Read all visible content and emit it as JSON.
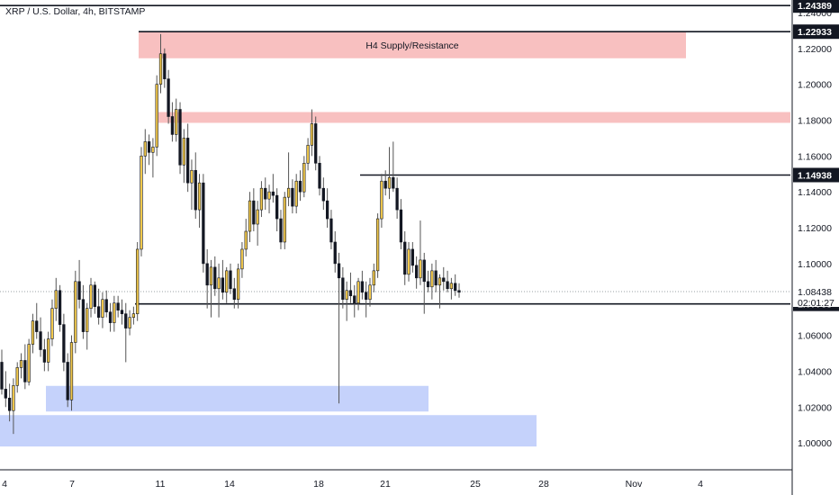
{
  "header": {
    "symbol": "XRP / U.S. Dollar, 4h, BITSTAMP"
  },
  "chart_data": {
    "type": "candlestick",
    "title": "XRP / U.S. Dollar, 4h, BITSTAMP",
    "ylim": [
      0.985,
      1.247
    ],
    "y_ticks": [
      "1.24000",
      "1.22000",
      "1.20000",
      "1.18000",
      "1.16000",
      "1.14000",
      "1.12000",
      "1.10000",
      "1.06000",
      "1.04000",
      "1.02000",
      "1.00000"
    ],
    "x_ticks": [
      "4",
      "7",
      "11",
      "14",
      "18",
      "21",
      "25",
      "28",
      "Nov",
      "4"
    ],
    "current_price": "1.08438",
    "countdown": "02:01:27",
    "colors": {
      "up": "#f2c94c",
      "down": "#131722",
      "wick": "#555555",
      "grid": "#ffffff",
      "supply": "#f8c0c0",
      "demand": "#c5d2fb"
    },
    "levels": [
      {
        "price": "1.24389"
      },
      {
        "price": "1.22933"
      },
      {
        "price": "1.14938"
      },
      {
        "price": "1.07753"
      }
    ],
    "zones": [
      {
        "type": "supply",
        "label": "H4 Supply/Resistance",
        "top": 1.2293,
        "bottom": 1.2145
      },
      {
        "type": "supply",
        "label": "",
        "top": 1.1845,
        "bottom": 1.1785
      },
      {
        "type": "demand",
        "label": "",
        "top": 1.0318,
        "bottom": 1.0175
      },
      {
        "type": "demand",
        "label": "",
        "top": 1.0155,
        "bottom": 0.998
      }
    ],
    "candles": [
      [
        1.045,
        1.052,
        1.027,
        1.03
      ],
      [
        1.03,
        1.04,
        1.02,
        1.025
      ],
      [
        1.025,
        1.033,
        1.012,
        1.018
      ],
      [
        1.018,
        1.036,
        1.005,
        1.032
      ],
      [
        1.032,
        1.045,
        1.028,
        1.042
      ],
      [
        1.042,
        1.05,
        1.036,
        1.046
      ],
      [
        1.046,
        1.055,
        1.03,
        1.034
      ],
      [
        1.034,
        1.058,
        1.032,
        1.055
      ],
      [
        1.055,
        1.072,
        1.05,
        1.068
      ],
      [
        1.068,
        1.078,
        1.058,
        1.062
      ],
      [
        1.062,
        1.07,
        1.048,
        1.052
      ],
      [
        1.052,
        1.058,
        1.04,
        1.045
      ],
      [
        1.045,
        1.062,
        1.04,
        1.058
      ],
      [
        1.058,
        1.08,
        1.054,
        1.075
      ],
      [
        1.075,
        1.092,
        1.068,
        1.085
      ],
      [
        1.085,
        1.088,
        1.062,
        1.066
      ],
      [
        1.066,
        1.072,
        1.04,
        1.045
      ],
      [
        1.045,
        1.05,
        1.02,
        1.024
      ],
      [
        1.024,
        1.06,
        1.018,
        1.056
      ],
      [
        1.056,
        1.096,
        1.05,
        1.09
      ],
      [
        1.09,
        1.102,
        1.075,
        1.08
      ],
      [
        1.08,
        1.088,
        1.058,
        1.062
      ],
      [
        1.062,
        1.078,
        1.052,
        1.075
      ],
      [
        1.075,
        1.092,
        1.07,
        1.088
      ],
      [
        1.088,
        1.09,
        1.072,
        1.076
      ],
      [
        1.076,
        1.086,
        1.066,
        1.07
      ],
      [
        1.07,
        1.084,
        1.064,
        1.08
      ],
      [
        1.08,
        1.085,
        1.07,
        1.073
      ],
      [
        1.073,
        1.078,
        1.062,
        1.067
      ],
      [
        1.067,
        1.082,
        1.062,
        1.078
      ],
      [
        1.078,
        1.082,
        1.07,
        1.074
      ],
      [
        1.074,
        1.08,
        1.066,
        1.072
      ],
      [
        1.072,
        1.078,
        1.045,
        1.064
      ],
      [
        1.064,
        1.074,
        1.06,
        1.07
      ],
      [
        1.07,
        1.076,
        1.066,
        1.072
      ],
      [
        1.072,
        1.112,
        1.068,
        1.108
      ],
      [
        1.108,
        1.165,
        1.104,
        1.16
      ],
      [
        1.16,
        1.175,
        1.15,
        1.168
      ],
      [
        1.168,
        1.172,
        1.155,
        1.162
      ],
      [
        1.162,
        1.17,
        1.148,
        1.165
      ],
      [
        1.165,
        1.205,
        1.16,
        1.2
      ],
      [
        1.2,
        1.228,
        1.195,
        1.217
      ],
      [
        1.217,
        1.22,
        1.198,
        1.203
      ],
      [
        1.203,
        1.208,
        1.178,
        1.182
      ],
      [
        1.182,
        1.19,
        1.168,
        1.172
      ],
      [
        1.172,
        1.192,
        1.168,
        1.186
      ],
      [
        1.186,
        1.19,
        1.15,
        1.155
      ],
      [
        1.155,
        1.175,
        1.145,
        1.17
      ],
      [
        1.17,
        1.178,
        1.14,
        1.145
      ],
      [
        1.145,
        1.158,
        1.13,
        1.152
      ],
      [
        1.152,
        1.162,
        1.125,
        1.13
      ],
      [
        1.13,
        1.15,
        1.12,
        1.145
      ],
      [
        1.145,
        1.15,
        1.095,
        1.1
      ],
      [
        1.1,
        1.108,
        1.075,
        1.088
      ],
      [
        1.088,
        1.102,
        1.07,
        1.098
      ],
      [
        1.098,
        1.104,
        1.082,
        1.086
      ],
      [
        1.086,
        1.1,
        1.07,
        1.092
      ],
      [
        1.092,
        1.102,
        1.08,
        1.084
      ],
      [
        1.084,
        1.098,
        1.078,
        1.096
      ],
      [
        1.096,
        1.1,
        1.083,
        1.086
      ],
      [
        1.086,
        1.092,
        1.075,
        1.08
      ],
      [
        1.08,
        1.1,
        1.075,
        1.097
      ],
      [
        1.097,
        1.112,
        1.092,
        1.108
      ],
      [
        1.108,
        1.125,
        1.104,
        1.118
      ],
      [
        1.118,
        1.14,
        1.112,
        1.135
      ],
      [
        1.135,
        1.142,
        1.118,
        1.122
      ],
      [
        1.122,
        1.135,
        1.11,
        1.13
      ],
      [
        1.13,
        1.146,
        1.126,
        1.142
      ],
      [
        1.142,
        1.148,
        1.13,
        1.136
      ],
      [
        1.136,
        1.144,
        1.128,
        1.14
      ],
      [
        1.14,
        1.15,
        1.134,
        1.138
      ],
      [
        1.138,
        1.142,
        1.118,
        1.125
      ],
      [
        1.125,
        1.13,
        1.108,
        1.112
      ],
      [
        1.112,
        1.14,
        1.108,
        1.137
      ],
      [
        1.137,
        1.162,
        1.132,
        1.142
      ],
      [
        1.142,
        1.147,
        1.128,
        1.132
      ],
      [
        1.132,
        1.15,
        1.128,
        1.146
      ],
      [
        1.146,
        1.152,
        1.135,
        1.14
      ],
      [
        1.14,
        1.16,
        1.137,
        1.156
      ],
      [
        1.156,
        1.17,
        1.152,
        1.166
      ],
      [
        1.166,
        1.186,
        1.16,
        1.178
      ],
      [
        1.178,
        1.182,
        1.152,
        1.156
      ],
      [
        1.156,
        1.16,
        1.138,
        1.142
      ],
      [
        1.142,
        1.148,
        1.13,
        1.135
      ],
      [
        1.135,
        1.142,
        1.12,
        1.125
      ],
      [
        1.125,
        1.13,
        1.108,
        1.112
      ],
      [
        1.112,
        1.118,
        1.095,
        1.1
      ],
      [
        1.1,
        1.106,
        1.022,
        1.092
      ],
      [
        1.092,
        1.098,
        1.075,
        1.08
      ],
      [
        1.08,
        1.09,
        1.068,
        1.085
      ],
      [
        1.085,
        1.095,
        1.078,
        1.082
      ],
      [
        1.082,
        1.088,
        1.07,
        1.078
      ],
      [
        1.078,
        1.092,
        1.074,
        1.09
      ],
      [
        1.09,
        1.096,
        1.08,
        1.084
      ],
      [
        1.084,
        1.09,
        1.07,
        1.08
      ],
      [
        1.08,
        1.092,
        1.076,
        1.088
      ],
      [
        1.088,
        1.1,
        1.084,
        1.096
      ],
      [
        1.096,
        1.128,
        1.092,
        1.125
      ],
      [
        1.125,
        1.15,
        1.12,
        1.146
      ],
      [
        1.146,
        1.152,
        1.138,
        1.142
      ],
      [
        1.142,
        1.165,
        1.136,
        1.148
      ],
      [
        1.148,
        1.168,
        1.14,
        1.142
      ],
      [
        1.142,
        1.148,
        1.125,
        1.13
      ],
      [
        1.13,
        1.136,
        1.108,
        1.112
      ],
      [
        1.112,
        1.118,
        1.088,
        1.094
      ],
      [
        1.094,
        1.112,
        1.09,
        1.108
      ],
      [
        1.108,
        1.112,
        1.095,
        1.099
      ],
      [
        1.099,
        1.104,
        1.086,
        1.092
      ],
      [
        1.092,
        1.124,
        1.088,
        1.102
      ],
      [
        1.102,
        1.106,
        1.072,
        1.09
      ],
      [
        1.09,
        1.096,
        1.084,
        1.087
      ],
      [
        1.087,
        1.1,
        1.08,
        1.096
      ],
      [
        1.096,
        1.102,
        1.084,
        1.088
      ],
      [
        1.088,
        1.094,
        1.075,
        1.092
      ],
      [
        1.092,
        1.098,
        1.085,
        1.09
      ],
      [
        1.09,
        1.096,
        1.084,
        1.086
      ],
      [
        1.086,
        1.092,
        1.08,
        1.089
      ],
      [
        1.089,
        1.094,
        1.082,
        1.085
      ],
      [
        1.085,
        1.089,
        1.081,
        1.084
      ]
    ]
  }
}
